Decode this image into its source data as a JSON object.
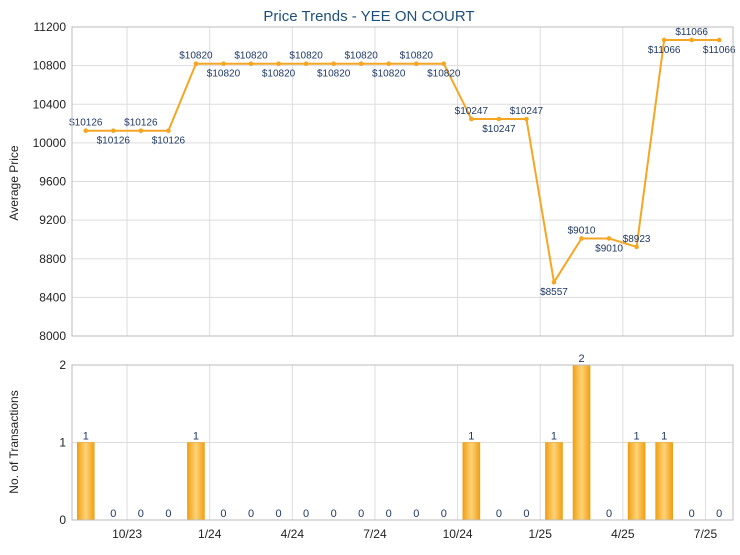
{
  "chart_data": [
    {
      "type": "line",
      "title": "Price Trends - YEE ON COURT",
      "ylabel": "Average Price",
      "ylim": [
        8000,
        11200
      ],
      "yticks": [
        8000,
        8400,
        8800,
        9200,
        9600,
        10000,
        10400,
        10800,
        11200
      ],
      "grid": true,
      "color": "#f5a623",
      "series": [
        {
          "values": [
            10126,
            10126,
            10126,
            10126,
            10820,
            10820,
            10820,
            10820,
            10820,
            10820,
            10820,
            10820,
            10820,
            10820,
            10247,
            10247,
            10247,
            8557,
            9010,
            9010,
            8923,
            11066,
            11066,
            11066
          ],
          "labels": [
            "$10126",
            "$10126",
            "$10126",
            "$10126",
            "$10820",
            "$10820",
            "$10820",
            "$10820",
            "$10820",
            "$10820",
            "$10820",
            "$10820",
            "$10820",
            "$10820",
            "$10247",
            "$10247",
            "$10247",
            "$8557",
            "$9010",
            "$9010",
            "$8923",
            "$11066",
            "$11066",
            "$11066"
          ]
        }
      ]
    },
    {
      "type": "bar",
      "ylabel": "No. of Transactions",
      "ylim": [
        0,
        2
      ],
      "yticks": [
        0,
        1,
        2
      ],
      "xticks": [
        "10/23",
        "1/24",
        "4/24",
        "7/24",
        "10/24",
        "1/25",
        "4/25",
        "7/25"
      ],
      "grid": true,
      "color": "#f2a516",
      "values": [
        1,
        0,
        0,
        0,
        1,
        0,
        0,
        0,
        0,
        0,
        0,
        0,
        0,
        0,
        1,
        0,
        0,
        1,
        2,
        0,
        1,
        1,
        0,
        0
      ]
    }
  ]
}
